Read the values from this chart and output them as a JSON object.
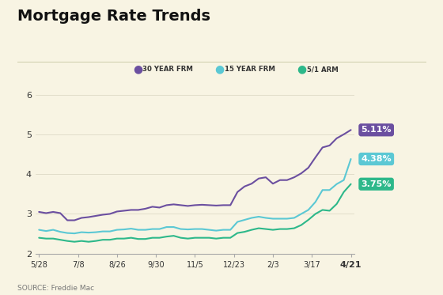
{
  "title": "Mortgage Rate Trends",
  "source": "SOURCE: Freddie Mac",
  "background_color": "#f8f4e3",
  "legend_labels": [
    "30 YEAR FRM",
    "15 YEAR FRM",
    "5/1 ARM"
  ],
  "legend_colors": [
    "#6b4fa0",
    "#5bc8d4",
    "#2db88a"
  ],
  "end_labels": [
    "5.11%",
    "4.38%",
    "3.75%"
  ],
  "end_label_colors": [
    "#6b4fa0",
    "#5bc8d4",
    "#2db88a"
  ],
  "x_tick_labels": [
    "5/28",
    "7/8",
    "8/26",
    "9/30",
    "11/5",
    "12/23",
    "2/3",
    "3/17",
    "4/21"
  ],
  "ylim": [
    2,
    6.3
  ],
  "yticks": [
    2,
    3,
    4,
    5,
    6
  ],
  "line_30yr": [
    3.05,
    3.02,
    3.05,
    3.02,
    2.84,
    2.84,
    2.9,
    2.92,
    2.95,
    2.98,
    3.0,
    3.06,
    3.08,
    3.1,
    3.1,
    3.13,
    3.18,
    3.16,
    3.22,
    3.24,
    3.22,
    3.2,
    3.22,
    3.23,
    3.22,
    3.21,
    3.22,
    3.22,
    3.55,
    3.69,
    3.76,
    3.89,
    3.92,
    3.76,
    3.85,
    3.85,
    3.92,
    4.02,
    4.16,
    4.42,
    4.67,
    4.72,
    4.9,
    5.0,
    5.11
  ],
  "line_15yr": [
    2.6,
    2.57,
    2.6,
    2.55,
    2.52,
    2.51,
    2.54,
    2.53,
    2.54,
    2.56,
    2.56,
    2.6,
    2.61,
    2.63,
    2.6,
    2.6,
    2.62,
    2.62,
    2.67,
    2.67,
    2.62,
    2.61,
    2.62,
    2.62,
    2.6,
    2.58,
    2.6,
    2.6,
    2.8,
    2.85,
    2.9,
    2.93,
    2.9,
    2.88,
    2.88,
    2.88,
    2.9,
    3.0,
    3.1,
    3.3,
    3.6,
    3.6,
    3.75,
    3.85,
    4.38
  ],
  "line_arm": [
    2.4,
    2.38,
    2.38,
    2.35,
    2.32,
    2.3,
    2.32,
    2.3,
    2.32,
    2.35,
    2.35,
    2.38,
    2.38,
    2.4,
    2.37,
    2.37,
    2.4,
    2.4,
    2.43,
    2.45,
    2.4,
    2.38,
    2.4,
    2.4,
    2.4,
    2.38,
    2.4,
    2.4,
    2.52,
    2.55,
    2.6,
    2.64,
    2.62,
    2.6,
    2.62,
    2.62,
    2.64,
    2.72,
    2.85,
    3.0,
    3.1,
    3.08,
    3.25,
    3.55,
    3.75
  ]
}
